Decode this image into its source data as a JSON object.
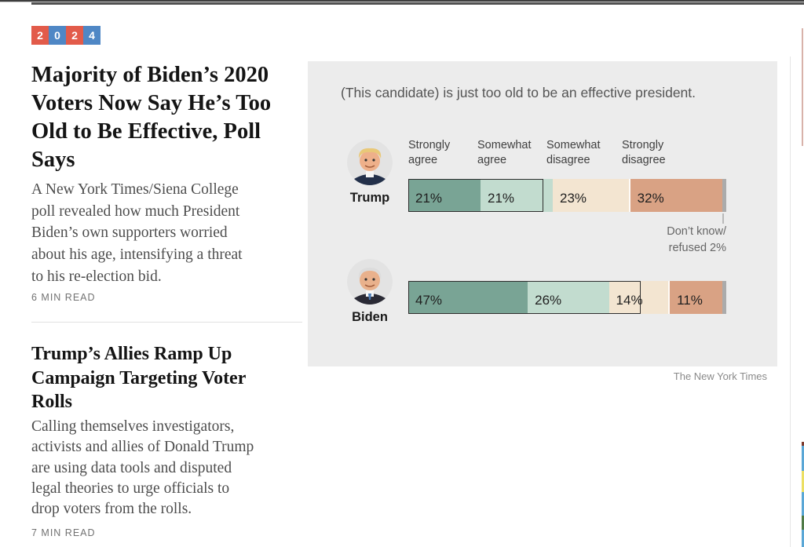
{
  "badge": {
    "digits": [
      "2",
      "0",
      "2",
      "4"
    ],
    "red": "#e25b4a",
    "blue": "#4f87c5"
  },
  "left_column": {
    "articles": [
      {
        "headline": "Majority of Biden’s 2020\nVoters Now Say He’s Too\nOld to Be Effective, Poll\nSays",
        "summary": "A New York Times/Siena College\npoll revealed how much President\nBiden’s own supporters worried\nabout his age, intensifying a threat\nto his re-election bid.",
        "read_time": "6 MIN READ"
      },
      {
        "headline": "Trump’s Allies Ramp Up\nCampaign Targeting Voter\nRolls",
        "summary": "Calling themselves investigators,\nactivists and allies of Donald Trump\nare using data tools and disputed\nlegal theories to urge officials to\ndrop voters from the rolls.",
        "read_time": "7 MIN READ"
      }
    ]
  },
  "chart": {
    "title": "(This candidate) is just too old to be an effective president.",
    "annotation": "Don’t know/\nrefused 2%",
    "credit": "The New York Times",
    "chart_data": {
      "type": "bar",
      "orientation": "horizontal",
      "stacked": true,
      "title": "(This candidate) is just too old to be an effective president.",
      "categories": [
        "Strongly agree",
        "Somewhat agree",
        "Somewhat disagree",
        "Strongly disagree",
        "Don't know/refused"
      ],
      "header_labels": [
        "Strongly\nagree",
        "Somewhat\nagree",
        "Somewhat\ndisagree",
        "Strongly\ndisagree"
      ],
      "colors": [
        "#79a495",
        "#c2dccf",
        "#f3e5d1",
        "#d9a284",
        "#ababab"
      ],
      "rows": [
        {
          "name": "Trump",
          "values": [
            21,
            21,
            23,
            32,
            2
          ],
          "labels": [
            "21%",
            "21%",
            "23%",
            "32%",
            ""
          ]
        },
        {
          "name": "Biden",
          "values": [
            47,
            26,
            14,
            11,
            2
          ],
          "labels": [
            "47%",
            "26%",
            "14%",
            "11%",
            ""
          ]
        }
      ],
      "legend_position": "top-inline",
      "grid": false,
      "note": "Agree segments outlined as a group; thin gray tail = Don't know/refused 2%"
    }
  }
}
